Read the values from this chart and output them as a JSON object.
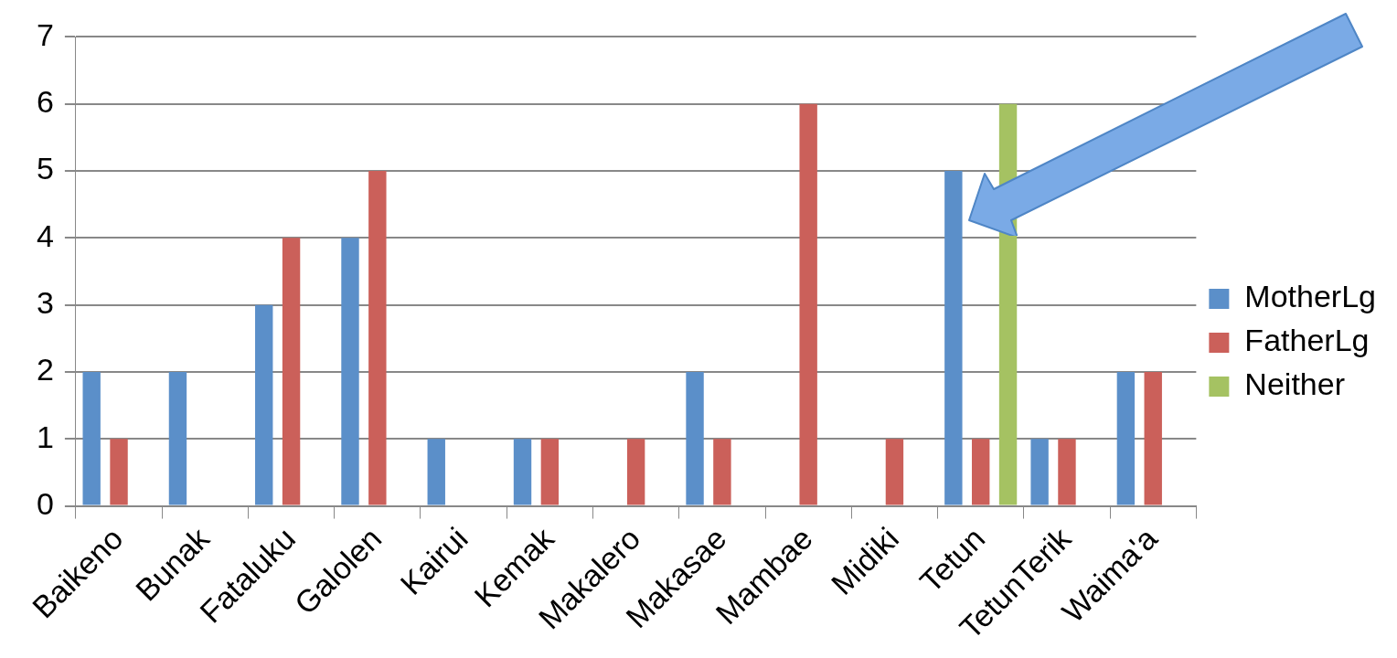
{
  "chart_data": {
    "type": "bar",
    "categories": [
      "Baikeno",
      "Bunak",
      "Fataluku",
      "Galolen",
      "Kairui",
      "Kemak",
      "Makalero",
      "Makasae",
      "Mambae",
      "Midiki",
      "Tetun",
      "TetunTerik",
      "Waima'a"
    ],
    "series": [
      {
        "name": "MotherLg",
        "color": "#5b8fc9",
        "values": [
          2,
          2,
          3,
          4,
          1,
          1,
          0,
          2,
          0,
          0,
          5,
          1,
          2
        ]
      },
      {
        "name": "FatherLg",
        "color": "#cb605a",
        "values": [
          1,
          0,
          4,
          5,
          0,
          1,
          1,
          1,
          6,
          1,
          1,
          1,
          2
        ]
      },
      {
        "name": "Neither",
        "color": "#a5c262",
        "values": [
          0,
          0,
          0,
          0,
          0,
          0,
          0,
          0,
          0,
          0,
          6,
          0,
          0
        ]
      }
    ],
    "ylim": [
      0,
      7
    ],
    "yticks": [
      0,
      1,
      2,
      3,
      4,
      5,
      6,
      7
    ],
    "grid": "y",
    "legend": "right"
  }
}
